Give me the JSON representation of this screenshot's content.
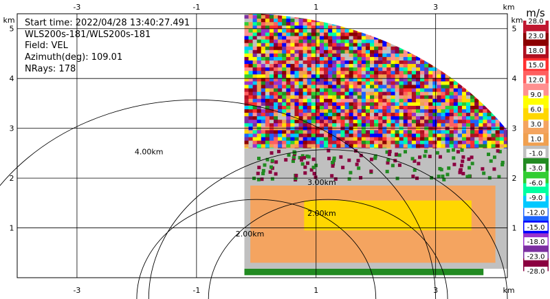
{
  "info": {
    "start_time": "Start time: 2022/04/28 13:40:27.491",
    "instrument": "WLS200s-181/WLS200s-181",
    "field": "Field: VEL",
    "azimuth": "Azimuth(deg): 109.01",
    "nrays": "NRays: 178"
  },
  "chart_data": {
    "type": "heatmap",
    "subtype": "RHI radar scan",
    "x_unit": "km",
    "y_unit": "km",
    "xlim": [
      -4.0,
      4.2
    ],
    "ylim": [
      0,
      5.3
    ],
    "x_ticks": [
      -3,
      -1,
      1,
      3
    ],
    "y_ticks": [
      1,
      2,
      3,
      4,
      5
    ],
    "x_tick_labels": [
      "-3",
      "-1",
      "1",
      "3"
    ],
    "y_tick_labels": [
      "1",
      "2",
      "3",
      "4",
      "5"
    ],
    "grid": true,
    "range_rings": [
      {
        "center_x": 0,
        "radius": 2.0,
        "label": "2.00km"
      },
      {
        "center_x": 1.2,
        "radius": 2.0,
        "label": "2.00km"
      },
      {
        "center_x": -1.0,
        "radius": 4.0,
        "label": "4.00km"
      },
      {
        "center_x": 1.2,
        "radius": 3.0,
        "label": "3.00km"
      }
    ],
    "scan": {
      "origin_x": -0.2,
      "max_range": 5.3
    },
    "colorbar": {
      "unit": "m/s",
      "labels": [
        "28.0",
        "23.0",
        "18.0",
        "15.0",
        "12.0",
        "9.0",
        "6.0",
        "3.0",
        "1.0",
        "-1.0",
        "-3.0",
        "-6.0",
        "-9.0",
        "-12.0",
        "-15.0",
        "-18.0",
        "-23.0",
        "-28.0"
      ],
      "colors": [
        "#c01830",
        "#8b0000",
        "#b01020",
        "#ff3030",
        "#ff6060",
        "#ff9090",
        "#ffff00",
        "#ffd700",
        "#f4a460",
        "#f0a050",
        "#c0c0c0",
        "#228b22",
        "#32cd32",
        "#00ffa0",
        "#00c8ff",
        "#1e64ff",
        "#0000ff",
        "#9932cc",
        "#7b2fa0",
        "#8b0040"
      ]
    },
    "bands": [
      {
        "name": "Ground clutter",
        "y": [
          0.05,
          0.18
        ],
        "x": [
          -0.2,
          3.8
        ],
        "color": "#228b22"
      },
      {
        "name": "Near-zero velocity",
        "y": [
          0.18,
          2.6
        ],
        "x": [
          -0.2,
          4.2
        ],
        "color": "#c0c0c0"
      },
      {
        "name": "Light outflow",
        "y": [
          0.3,
          1.85
        ],
        "x": [
          -0.1,
          4.0
        ],
        "color": "#f4a460"
      },
      {
        "name": "Moderate outflow",
        "y": [
          0.95,
          1.55
        ],
        "x": [
          0.8,
          3.6
        ],
        "color": "#ffd700"
      },
      {
        "name": "Noise",
        "y": [
          2.2,
          5.1
        ],
        "x": [
          -0.2,
          4.2
        ],
        "color": "noise"
      }
    ]
  }
}
